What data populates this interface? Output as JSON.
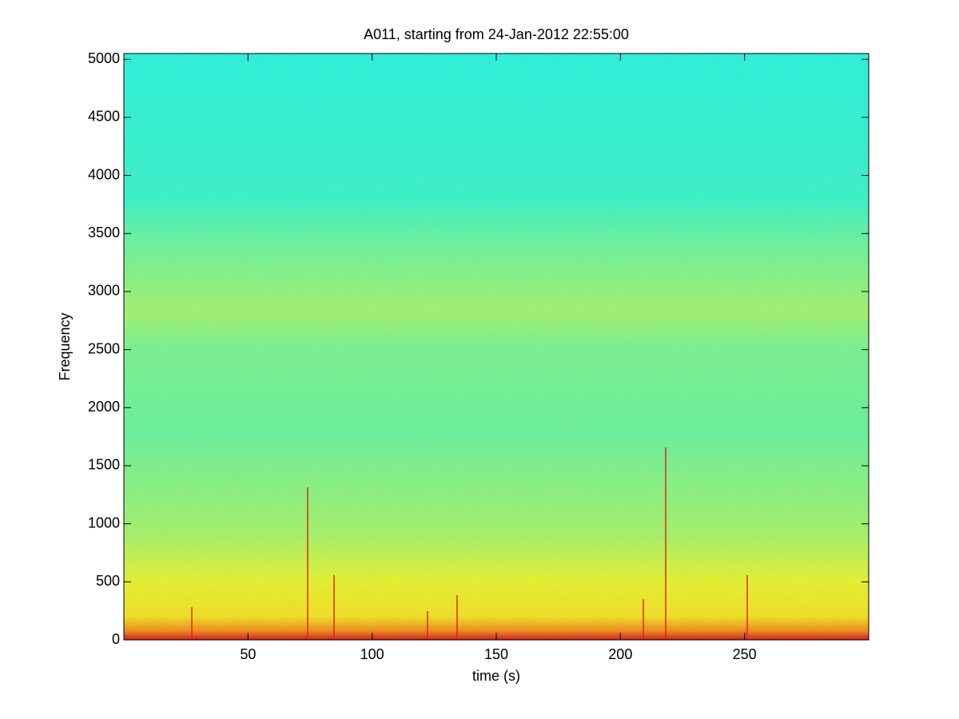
{
  "chart_data": {
    "type": "spectrogram",
    "title": "A011, starting from 24-Jan-2012 22:55:00",
    "x_label": "time (s)",
    "y_label": "Frequency",
    "xlim": [
      0,
      300
    ],
    "xticks": [
      50,
      100,
      150,
      200,
      250
    ],
    "ylim": [
      0,
      5050
    ],
    "yticks": [
      0,
      500,
      1000,
      1500,
      2000,
      2500,
      3000,
      3500,
      4000,
      4500,
      5000
    ],
    "colormap": "jet"
  }
}
